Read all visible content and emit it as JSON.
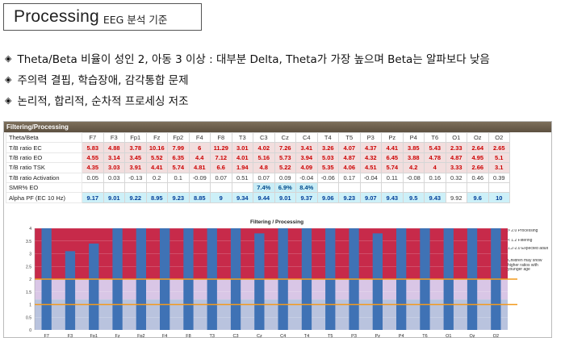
{
  "title": {
    "main": "Processing",
    "sub": "EEG 분석 기준"
  },
  "bullets": [
    "Theta/Beta 비율이 성인 2, 아동 3 이상 : 대부분 Delta, Theta가 가장 높으며 Beta는 알파보다 낮음",
    "주의력 결핍, 학습장애, 감각통합 문제",
    "논리적, 합리적, 순차적 프로세싱 저조"
  ],
  "panel_title": "Filtering/Processing",
  "table": {
    "header_label": "Theta/Beta",
    "columns": [
      "F7",
      "F3",
      "Fp1",
      "Fz",
      "Fp2",
      "F4",
      "F8",
      "T3",
      "C3",
      "Cz",
      "C4",
      "T4",
      "T5",
      "P3",
      "Pz",
      "P4",
      "T6",
      "O1",
      "Oz",
      "O2"
    ],
    "rows": [
      {
        "label": "T/B ratio EC",
        "style": "red",
        "values": [
          "5.83",
          "4.88",
          "3.78",
          "10.16",
          "7.99",
          "6",
          "11.29",
          "3.01",
          "4.02",
          "7.26",
          "3.41",
          "3.26",
          "4.07",
          "4.37",
          "4.41",
          "3.85",
          "5.43",
          "2.33",
          "2.64",
          "2.65"
        ]
      },
      {
        "label": "T/B ratio EO",
        "style": "red",
        "values": [
          "4.55",
          "3.14",
          "3.45",
          "5.52",
          "6.35",
          "4.4",
          "7.12",
          "4.01",
          "5.16",
          "5.73",
          "3.94",
          "5.03",
          "4.87",
          "4.32",
          "6.45",
          "3.88",
          "4.78",
          "4.87",
          "4.95",
          "5.1"
        ]
      },
      {
        "label": "T/B ratio TSK",
        "style": "red",
        "values": [
          "4.35",
          "3.03",
          "3.91",
          "4.41",
          "5.74",
          "4.81",
          "6.6",
          "1.94",
          "4.8",
          "5.22",
          "4.09",
          "5.35",
          "4.06",
          "4.51",
          "5.74",
          "4.2",
          "4",
          "3.33",
          "2.66",
          "3.1"
        ]
      },
      {
        "label": "T/B ratio Activation",
        "style": "blk",
        "values": [
          "0.05",
          "0.03",
          "-0.13",
          "0.2",
          "0.1",
          "-0.09",
          "0.07",
          "0.51",
          "0.07",
          "0.09",
          "-0.04",
          "-0.06",
          "0.17",
          "-0.04",
          "0.11",
          "-0.08",
          "0.16",
          "0.32",
          "0.46",
          "0.39"
        ]
      },
      {
        "label": "SMR% EO",
        "style": "smr",
        "values": [
          "",
          "",
          "",
          "",
          "",
          "",
          "",
          "",
          "7.4%",
          "6.9%",
          "8.4%",
          "",
          "",
          "",
          "",
          "",
          "",
          "",
          "",
          ""
        ]
      },
      {
        "label": "Alpha PF (EC 10 Hz)",
        "style": "apf",
        "values": [
          "9.17",
          "9.01",
          "9.22",
          "8.95",
          "9.23",
          "8.85",
          "9",
          "9.34",
          "9.44",
          "9.01",
          "9.37",
          "9.06",
          "9.23",
          "9.07",
          "9.43",
          "9.5",
          "9.43",
          "9.92",
          "9.6",
          "10"
        ]
      }
    ]
  },
  "chart_data": {
    "type": "bar",
    "title": "Filtering / Processing",
    "categories": [
      "F7",
      "F3",
      "Fp1",
      "Fz",
      "Fp2",
      "F4",
      "F8",
      "T3",
      "C3",
      "Cz",
      "C4",
      "T4",
      "T5",
      "P3",
      "Pz",
      "P4",
      "T6",
      "O1",
      "Oz",
      "O2"
    ],
    "values": [
      4.1,
      3.1,
      3.4,
      4.1,
      4.1,
      4.1,
      4.1,
      4.1,
      4.1,
      3.8,
      4.1,
      4.1,
      4.1,
      4.1,
      3.8,
      4.1,
      4.1,
      4.1,
      4.1,
      4.1
    ],
    "ylim": [
      0,
      4
    ],
    "yticks": [
      "0",
      "0.5",
      "1",
      "1.5",
      "2",
      "2.5",
      "3",
      "3.5",
      "4"
    ],
    "reference_lines": [
      2,
      1
    ],
    "bands": [
      {
        "from": 2,
        "to": 4,
        "color": "#c72a4a"
      },
      {
        "from": 1.2,
        "to": 2,
        "color": "#d9c6e6"
      },
      {
        "from": 0,
        "to": 1.2,
        "color": "#b9c3de"
      }
    ],
    "bar_color": "#3f72b5",
    "line_color": "#f39a1c",
    "legend": [
      "> 2.0 Processing",
      "< 1.2 Filtering",
      "1.2-2.0 Expected adult",
      "Children may show higher ratios with younger age"
    ]
  }
}
